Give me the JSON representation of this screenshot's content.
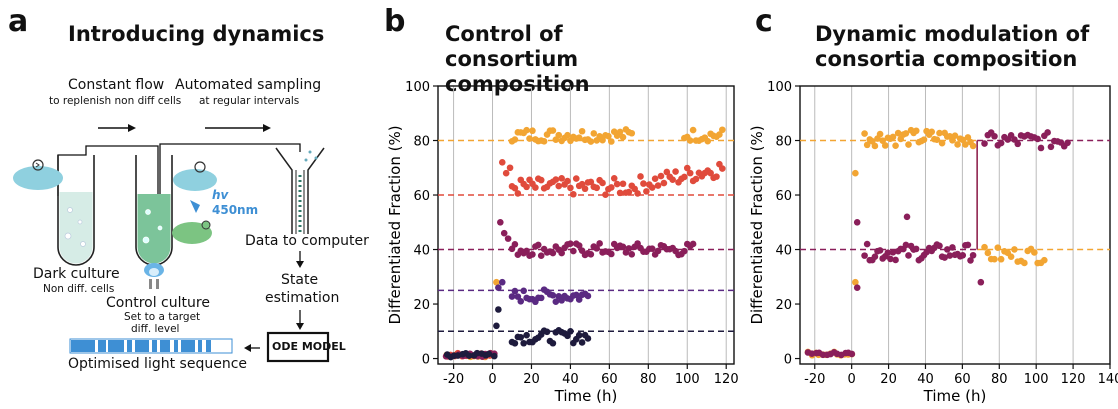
{
  "panel_a": {
    "label": "a",
    "title": "Introducing dynamics",
    "flow_title": "Constant flow",
    "flow_sub": "to replenish non diff cells",
    "sampling_title": "Automated sampling",
    "sampling_sub": "at regular intervals",
    "light_text": "hv",
    "wavelength": "450nm",
    "dark_title": "Dark culture",
    "dark_sub": "Non diff. cells",
    "control_title": "Control culture",
    "control_sub1": "Set to a target",
    "control_sub2": "diff. level",
    "data_label": "Data to computer",
    "state_label1": "State",
    "state_label2": "estimation",
    "model_label": "ODE MODEL",
    "sequence_label": "Optimised light sequence",
    "colors": {
      "cyan": "#8fd0df",
      "green": "#7cc482",
      "blue": "#3e8fd4",
      "tube_green": "#7cc49a"
    }
  },
  "chart_data": [
    {
      "type": "scatter",
      "panel_label": "b",
      "title": "Control of consortium composition",
      "xlabel": "Time (h)",
      "ylabel": "Differentiated Fraction (%)",
      "xlim": [
        -28,
        124
      ],
      "ylim": [
        -2,
        100
      ],
      "xticks": [
        -20,
        0,
        20,
        40,
        60,
        80,
        100,
        120
      ],
      "yticks": [
        0,
        20,
        40,
        60,
        80,
        100
      ],
      "grid": "vertical",
      "reference_lines": [
        {
          "y": 80,
          "color": "#f2a533"
        },
        {
          "y": 60,
          "color": "#e04b3c"
        },
        {
          "y": 40,
          "color": "#8a1f5a"
        },
        {
          "y": 25,
          "color": "#5a2a82"
        },
        {
          "y": 10,
          "color": "#1e1b3d"
        }
      ],
      "series": [
        {
          "target": 80,
          "color": "#f2a533",
          "start": 4,
          "end": 118,
          "gap": [
            72,
            98
          ],
          "level": 82,
          "jitter": 1.5,
          "initial": [
            {
              "x": 2,
              "y": 28
            }
          ]
        },
        {
          "target": 60,
          "color": "#e04b3c",
          "start": 4,
          "end": 118,
          "level": 63,
          "jitter": 2,
          "ramp": 70,
          "initial": [
            {
              "x": 5,
              "y": 72
            },
            {
              "x": 7,
              "y": 68
            },
            {
              "x": 9,
              "y": 70
            }
          ]
        },
        {
          "target": 40,
          "color": "#8a1f5a",
          "start": 4,
          "end": 104,
          "level": 40,
          "jitter": 1.5,
          "initial": [
            {
              "x": 4,
              "y": 50
            },
            {
              "x": 6,
              "y": 46
            },
            {
              "x": 8,
              "y": 44
            }
          ]
        },
        {
          "target": 25,
          "color": "#5a2a82",
          "start": 4,
          "end": 50,
          "level": 23,
          "jitter": 1.5,
          "initial": [
            {
              "x": 3,
              "y": 26
            },
            {
              "x": 5,
              "y": 28
            }
          ]
        },
        {
          "target": 10,
          "color": "#1e1b3d",
          "start": 4,
          "end": 50,
          "level": 8,
          "jitter": 1.5,
          "initial": [
            {
              "x": 2,
              "y": 12
            },
            {
              "x": 3,
              "y": 18
            }
          ]
        }
      ],
      "pre_series": {
        "colors": [
          "#f2a533",
          "#e04b3c",
          "#8a1f5a",
          "#1e1b3d"
        ],
        "start": -24,
        "end": 0,
        "level": 1
      }
    },
    {
      "type": "scatter",
      "panel_label": "c",
      "title": "Dynamic modulation of consortia composition",
      "xlabel": "Time (h)",
      "ylabel": "Differentiated Fraction (%)",
      "xlim": [
        -28,
        140
      ],
      "ylim": [
        -2,
        100
      ],
      "xticks": [
        -20,
        0,
        20,
        40,
        60,
        80,
        100,
        120,
        140
      ],
      "yticks": [
        0,
        20,
        40,
        60,
        80,
        100
      ],
      "grid": "vertical",
      "switch_time": 68,
      "series": [
        {
          "name": "orange",
          "color": "#f2a533",
          "phase1": {
            "start": 4,
            "end": 66,
            "level": 81
          },
          "phase2": {
            "start": 72,
            "end": 106,
            "level": 38
          },
          "target1": 80,
          "target2": 40
        },
        {
          "name": "purple",
          "color": "#8a1f5a",
          "phase1": {
            "start": 4,
            "end": 66,
            "level": 39
          },
          "phase2": {
            "start": 72,
            "end": 118,
            "level": 80
          },
          "target1": 40,
          "target2": 80
        }
      ]
    }
  ]
}
